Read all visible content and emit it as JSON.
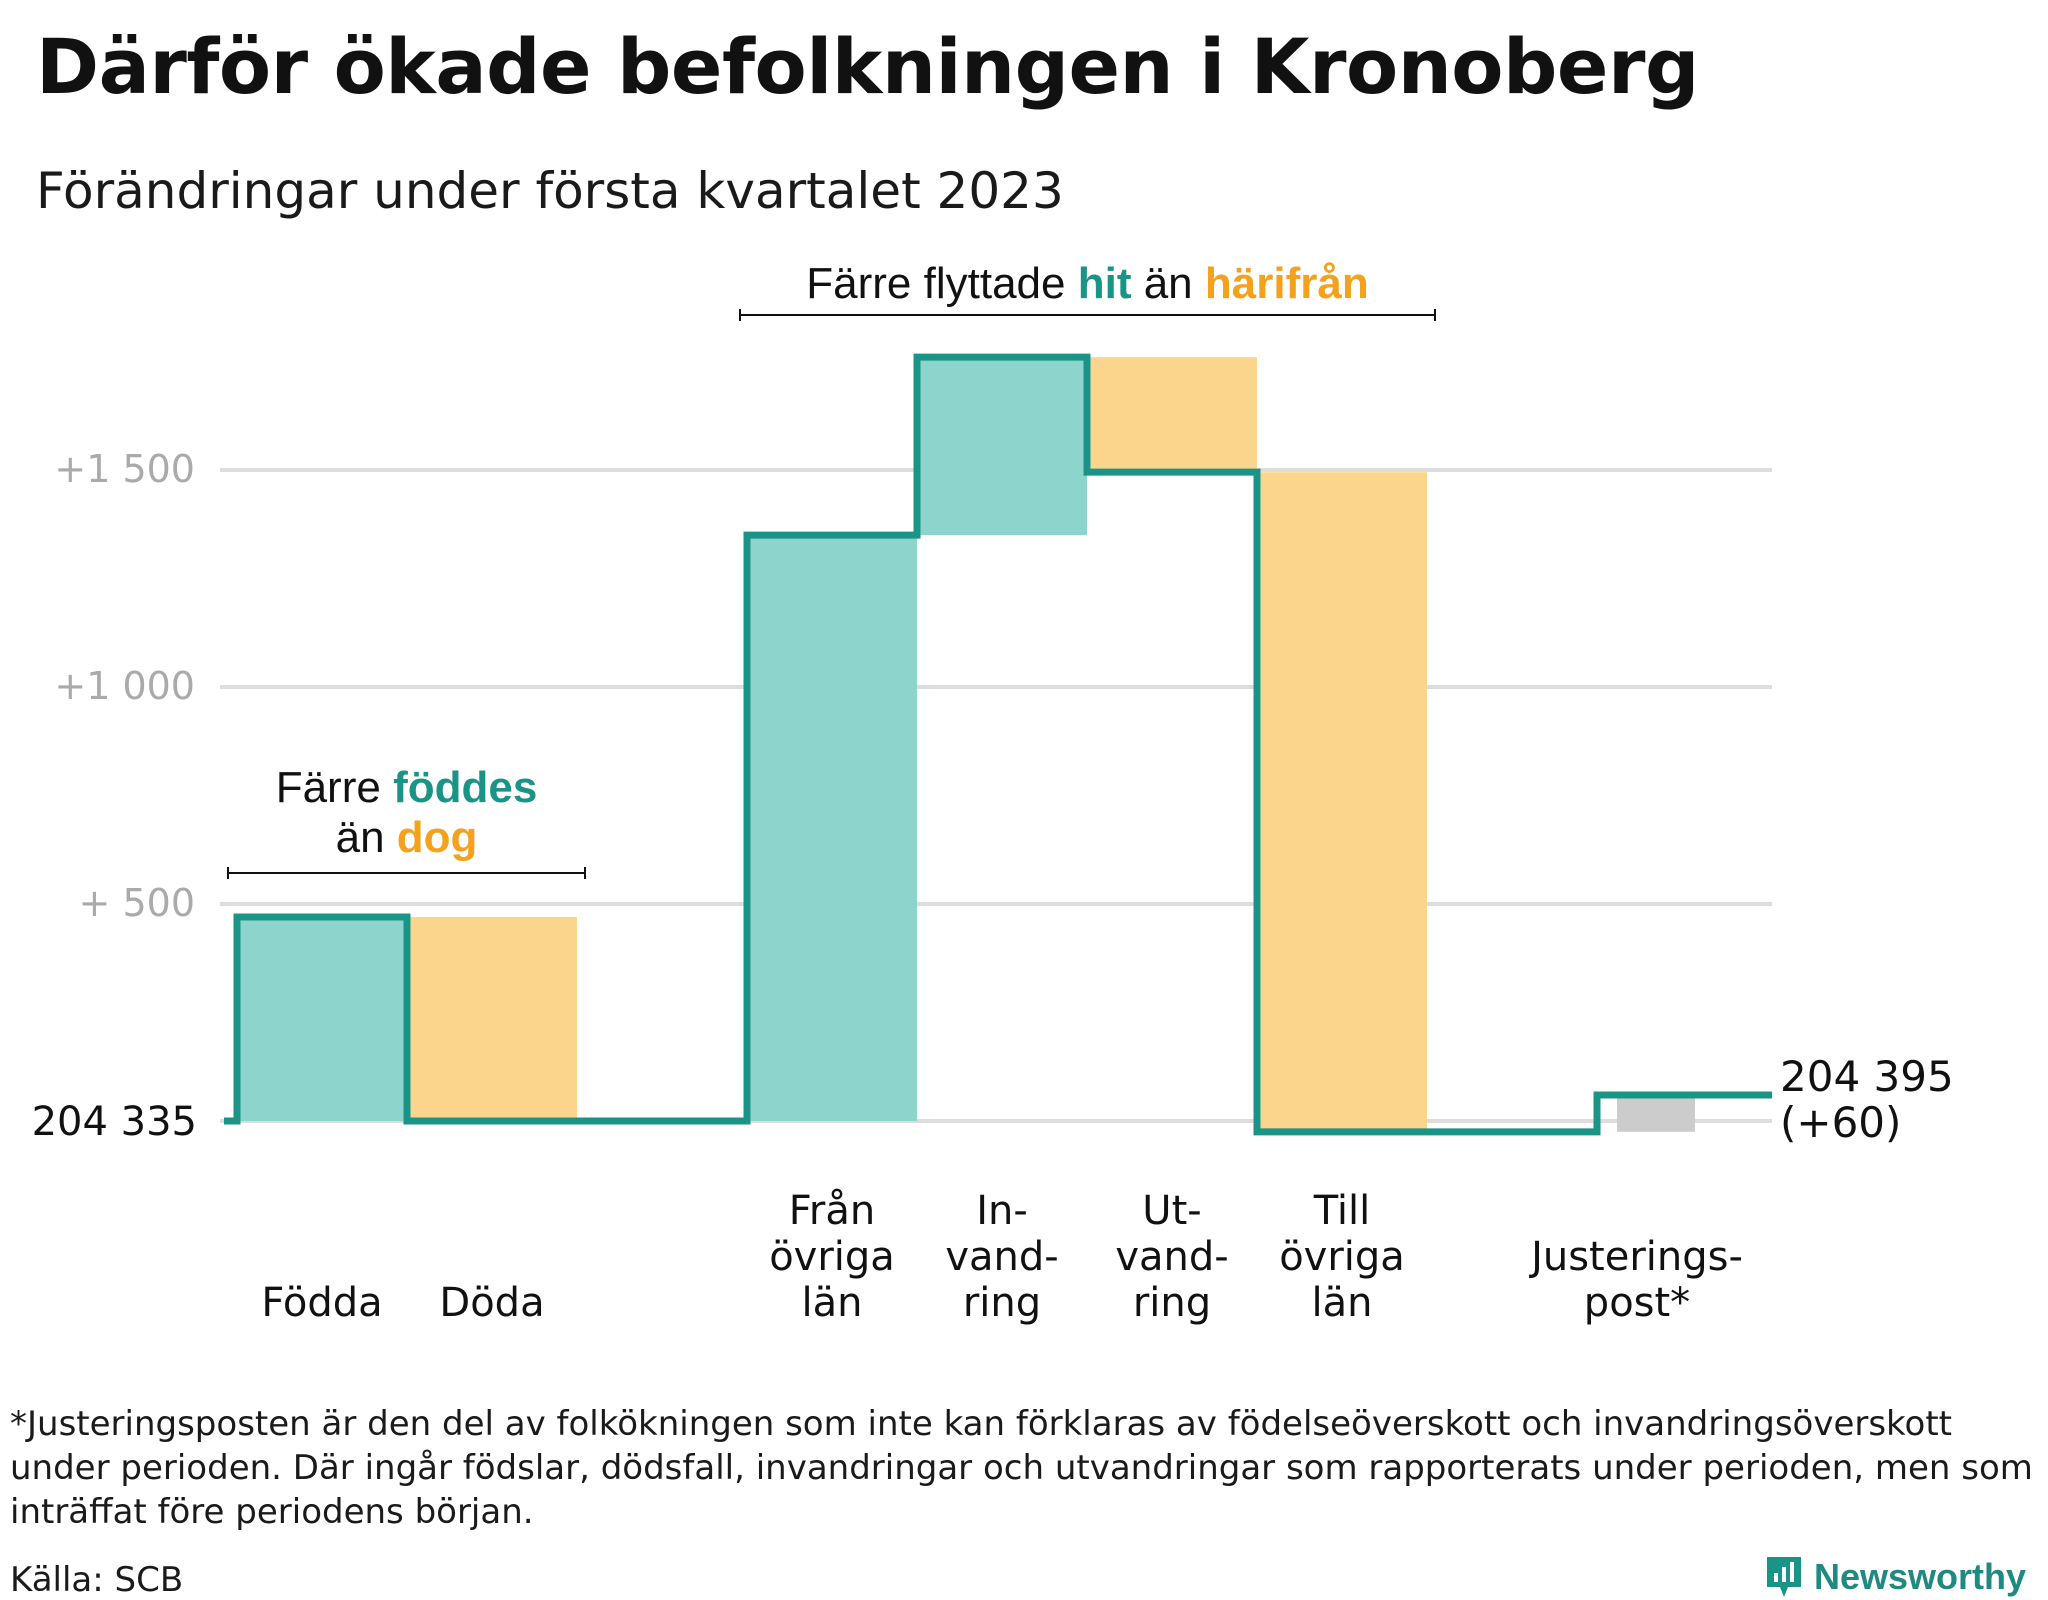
{
  "title": "Därför ökade befolkningen i Kronoberg",
  "subtitle": "Förändringar under första kvartalet 2023",
  "footnote": "*Justeringsposten är den del av folkökningen som inte kan förklaras av födelseöverskott och invandringsöverskott under perioden. Där ingår födslar, dödsfall, invandringar och utvandringar som rapporterats under perioden, men som inträffat före periodens början.",
  "source": "Källa: SCB",
  "brand": "Newsworthy",
  "colors": {
    "increase": "#8dd5cc",
    "decrease": "#fbd58c",
    "adjustment": "#cccccc",
    "line": "#1a9487",
    "highlight_teal": "#1a9487",
    "highlight_orange": "#f4a11e",
    "grid": "#dddddd",
    "tick_text": "#aaaaaa"
  },
  "chart_data": {
    "type": "waterfall",
    "baseline_value": 204335,
    "baseline_label": "204 335",
    "end_value": 204395,
    "end_label": "204 395",
    "end_change_label": "(+60)",
    "y_ticks": [
      {
        "value": 500,
        "label": "+ 500"
      },
      {
        "value": 1000,
        "label": "+1 000"
      },
      {
        "value": 1500,
        "label": "+1 500"
      }
    ],
    "ylim": [
      -100,
      1900
    ],
    "grid": true,
    "steps": [
      {
        "label_lines": [
          "Födda"
        ],
        "change": 470,
        "kind": "increase"
      },
      {
        "label_lines": [
          "Döda"
        ],
        "change": -470,
        "kind": "decrease"
      },
      {
        "label_lines": [
          ""
        ],
        "change": 0,
        "kind": "gap"
      },
      {
        "label_lines": [
          "Från",
          "övriga",
          "län"
        ],
        "change": 1350,
        "kind": "increase"
      },
      {
        "label_lines": [
          "In-",
          "vand-",
          "ring"
        ],
        "change": 410,
        "kind": "increase"
      },
      {
        "label_lines": [
          "Ut-",
          "vand-",
          "ring"
        ],
        "change": -265,
        "kind": "decrease"
      },
      {
        "label_lines": [
          "Till",
          "övriga",
          "län"
        ],
        "change": -1520,
        "kind": "decrease"
      },
      {
        "label_lines": [
          ""
        ],
        "change": 0,
        "kind": "gap"
      },
      {
        "label_lines": [
          "Justerings-",
          "post*"
        ],
        "change": 85,
        "kind": "adjustment"
      }
    ],
    "annotations": [
      {
        "segments": [
          {
            "text": "Färre ",
            "style": "normal"
          },
          {
            "text": "föddes",
            "style": "teal"
          },
          {
            "text": "\n",
            "style": "break"
          },
          {
            "text": "än ",
            "style": "normal"
          },
          {
            "text": "dog",
            "style": "orange"
          }
        ],
        "spans_steps": [
          0,
          1
        ]
      },
      {
        "segments": [
          {
            "text": "Färre flyttade ",
            "style": "normal"
          },
          {
            "text": "hit",
            "style": "teal"
          },
          {
            "text": " än ",
            "style": "normal"
          },
          {
            "text": "härifrån",
            "style": "orange"
          }
        ],
        "spans_steps": [
          3,
          6
        ]
      }
    ]
  }
}
